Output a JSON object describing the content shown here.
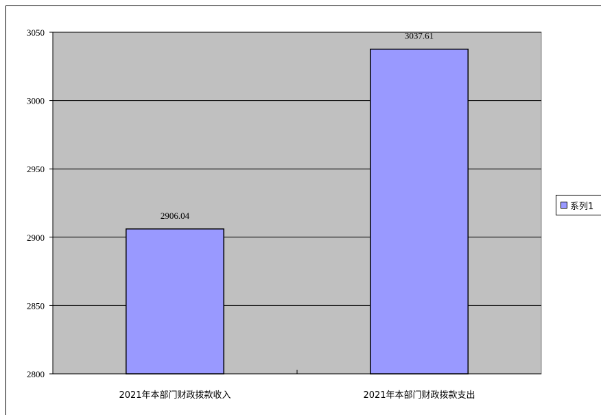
{
  "chart_data": {
    "type": "bar",
    "categories": [
      "2021年本部门财政拨款收入",
      "2021年本部门财政拨款支出"
    ],
    "series": [
      {
        "name": "系列1",
        "values": [
          2906.04,
          3037.61
        ],
        "data_labels": [
          "2906.04",
          "3037.61"
        ]
      }
    ],
    "ylim": [
      2800,
      3050
    ],
    "yticks": [
      2800,
      2850,
      2900,
      2950,
      3000,
      3050
    ],
    "grid": true,
    "legend_position": "right",
    "colors": {
      "plot_background": "#c0c0c0",
      "bar_fill": "#9999ff",
      "bar_stroke": "#000000",
      "gridline": "#000000"
    }
  }
}
